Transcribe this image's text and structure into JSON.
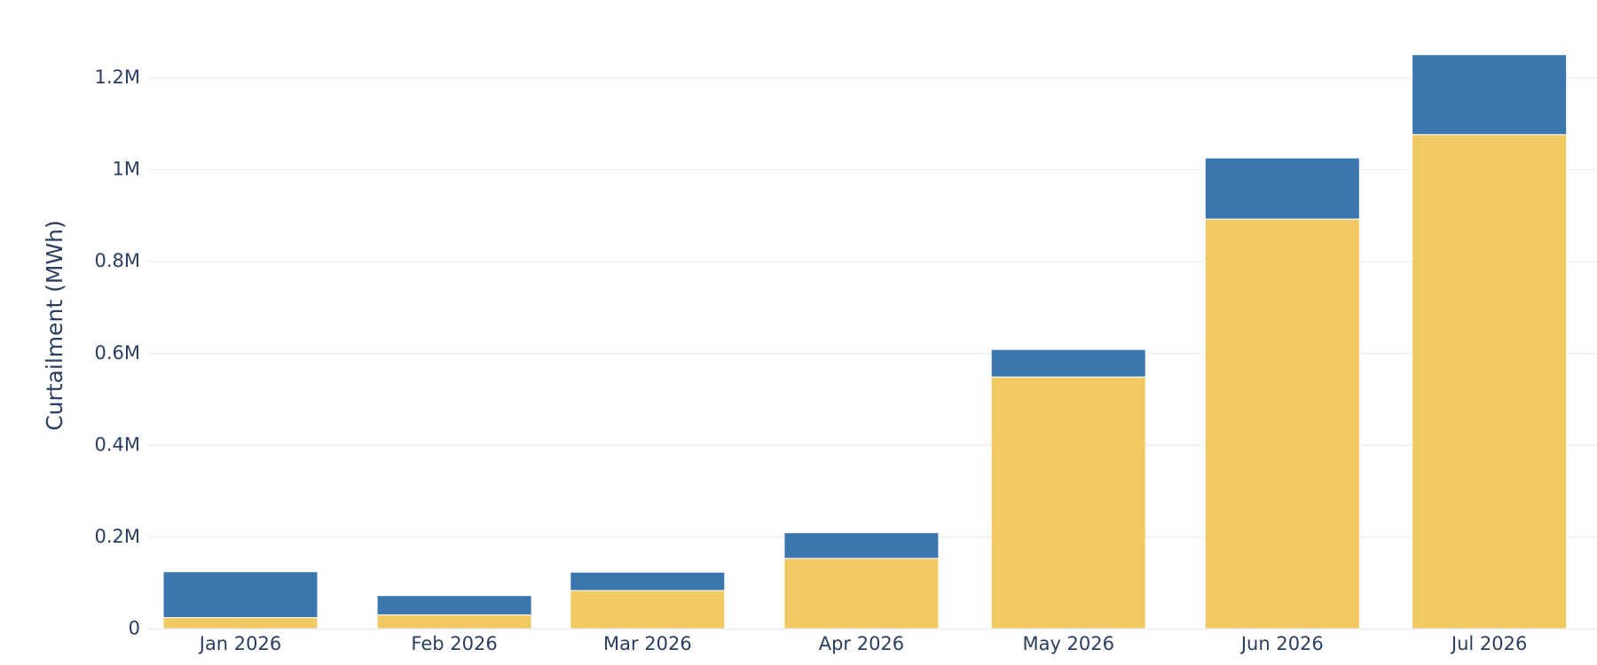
{
  "chart_data": {
    "type": "stacked-bar",
    "y_label": "Curtailment (MWh)",
    "x": [
      "2026-01",
      "2026-02",
      "2026-03",
      "2026-04",
      "2026-05",
      "2026-06",
      "2026-07"
    ],
    "xticks": [
      {
        "value": "2026-01",
        "label": "Jan 2026"
      },
      {
        "value": "2026-02",
        "label": "Feb 2026"
      },
      {
        "value": "2026-03",
        "label": "Mar 2026"
      },
      {
        "value": "2026-04",
        "label": "Apr 2026"
      },
      {
        "value": "2026-05",
        "label": "May 2026"
      },
      {
        "value": "2026-06",
        "label": "Jun 2026"
      },
      {
        "value": "2026-07",
        "label": "Jul 2026"
      }
    ],
    "series": [
      {
        "color": "#f0c960",
        "values": [
          25000,
          31000,
          84000,
          154000,
          549000,
          893000,
          1077000
        ]
      },
      {
        "color": "#3b76ae",
        "values": [
          100000,
          42000,
          40000,
          56000,
          60000,
          133000,
          174000
        ]
      }
    ],
    "ylim": [
      0,
      1316000
    ],
    "yticks": [
      0,
      {
        "value": 200000,
        "label": "0.2M"
      },
      {
        "value": 400000,
        "label": "0.4M"
      },
      {
        "value": 600000,
        "label": "0.6M"
      },
      {
        "value": 800000,
        "label": "0.8M"
      },
      {
        "value": 1000000,
        "label": "1M"
      },
      {
        "value": 1200000,
        "label": "1.2M"
      }
    ],
    "grid": true
  }
}
